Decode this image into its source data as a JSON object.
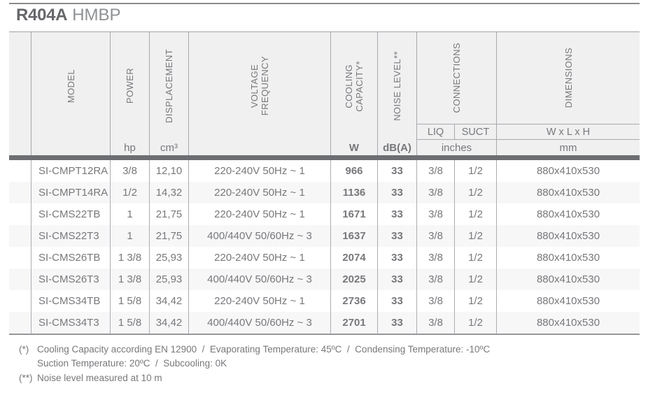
{
  "title": {
    "refrigerant": "R404A",
    "variant": "HMBP"
  },
  "colors": {
    "text": "#77787b",
    "title_primary": "#66676a",
    "title_secondary": "#8e9093",
    "header_bg": "#f0f0f1",
    "stripe_bg": "#f7f7f8",
    "divider_bar": "#6d6e71",
    "border": "#a7a9ac"
  },
  "table": {
    "headers": {
      "model": "MODEL",
      "power": "POWER",
      "displacement": "DISPLACEMENT",
      "voltage_frequency": "VOLTAGE\nFREQUENCY",
      "cooling_capacity": "COOLING\nCAPACITY*",
      "noise_level": "NOISE LEVEL**",
      "connections": "CONNECTIONS",
      "dimensions": "DIMENSIONS",
      "liq": "LIQ",
      "suct": "SUCT",
      "wxlxh": "W x L x H"
    },
    "units": {
      "power": "hp",
      "displacement": "cm³",
      "cooling": "W",
      "noise": "dB(A)",
      "connections": "inches",
      "dimensions": "mm"
    },
    "rows": [
      {
        "model": "SI-CMPT12RA",
        "power": "3/8",
        "displacement": "12,10",
        "voltage": "220-240V 50Hz ~ 1",
        "cooling": "966",
        "noise": "33",
        "liq": "3/8",
        "suct": "1/2",
        "dimensions": "880x410x530"
      },
      {
        "model": "SI-CMPT14RA",
        "power": "1/2",
        "displacement": "14,32",
        "voltage": "220-240V 50Hz ~ 1",
        "cooling": "1136",
        "noise": "33",
        "liq": "3/8",
        "suct": "1/2",
        "dimensions": "880x410x530"
      },
      {
        "model": "SI-CMS22TB",
        "power": "1",
        "displacement": "21,75",
        "voltage": "220-240V 50Hz ~ 1",
        "cooling": "1671",
        "noise": "33",
        "liq": "3/8",
        "suct": "1/2",
        "dimensions": "880x410x530"
      },
      {
        "model": "SI-CMS22T3",
        "power": "1",
        "displacement": "21,75",
        "voltage": "400/440V 50/60Hz ~ 3",
        "cooling": "1637",
        "noise": "33",
        "liq": "3/8",
        "suct": "1/2",
        "dimensions": "880x410x530"
      },
      {
        "model": "SI-CMS26TB",
        "power": "1 3/8",
        "displacement": "25,93",
        "voltage": "220-240V 50Hz ~ 1",
        "cooling": "2074",
        "noise": "33",
        "liq": "3/8",
        "suct": "1/2",
        "dimensions": "880x410x530"
      },
      {
        "model": "SI-CMS26T3",
        "power": "1 3/8",
        "displacement": "25,93",
        "voltage": "400/440V 50/60Hz ~ 3",
        "cooling": "2025",
        "noise": "33",
        "liq": "3/8",
        "suct": "1/2",
        "dimensions": "880x410x530"
      },
      {
        "model": "SI-CMS34TB",
        "power": "1 5/8",
        "displacement": "34,42",
        "voltage": "220-240V 50Hz ~ 1",
        "cooling": "2736",
        "noise": "33",
        "liq": "3/8",
        "suct": "1/2",
        "dimensions": "880x410x530"
      },
      {
        "model": "SI-CMS34T3",
        "power": "1 5/8",
        "displacement": "34,42",
        "voltage": "400/440V 50/60Hz ~ 3",
        "cooling": "2701",
        "noise": "33",
        "liq": "3/8",
        "suct": "1/2",
        "dimensions": "880x410x530"
      }
    ]
  },
  "footnotes": [
    {
      "marker": "(*)",
      "text": "Cooling Capacity according EN 12900  /  Evaporating Temperature: 45ºC  /  Condensing Temperature: -10ºC"
    },
    {
      "marker": "",
      "text": "Suction Temperature: 20ºC  /  Subcooling: 0K"
    },
    {
      "marker": "(**)",
      "text": "Noise level measured at 10 m"
    }
  ]
}
